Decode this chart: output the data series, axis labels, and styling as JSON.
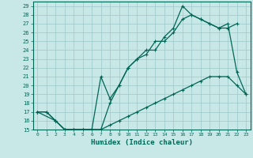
{
  "xlabel": "Humidex (Indice chaleur)",
  "bg_color": "#c8e8e8",
  "grid_color": "#9ec8c8",
  "line_color": "#006655",
  "xlim": [
    -0.5,
    23.5
  ],
  "ylim": [
    15,
    29.5
  ],
  "xticks": [
    0,
    1,
    2,
    3,
    4,
    5,
    6,
    7,
    8,
    9,
    10,
    11,
    12,
    13,
    14,
    15,
    16,
    17,
    18,
    19,
    20,
    21,
    22,
    23
  ],
  "yticks": [
    15,
    16,
    17,
    18,
    19,
    20,
    21,
    22,
    23,
    24,
    25,
    26,
    27,
    28,
    29
  ],
  "line1_x": [
    0,
    1,
    2,
    3,
    4,
    5,
    6,
    7,
    8,
    9,
    10,
    11,
    12,
    13,
    14,
    15,
    16,
    17,
    18,
    19,
    20,
    21,
    22,
    23
  ],
  "line1_y": [
    17,
    17,
    16,
    15,
    15,
    15,
    15,
    15,
    15.5,
    16,
    16.5,
    17,
    17.5,
    18,
    18.5,
    19,
    19.5,
    20,
    20.5,
    21,
    21,
    21,
    20,
    19
  ],
  "line2_x": [
    0,
    2,
    3,
    4,
    5,
    6,
    7,
    8,
    9,
    10,
    11,
    12,
    13,
    14,
    15,
    16,
    17,
    18,
    19,
    20,
    21,
    22
  ],
  "line2_y": [
    17,
    16,
    15,
    15,
    15,
    15,
    21,
    18.5,
    20,
    22,
    23,
    24,
    24,
    25.5,
    26.5,
    29,
    28,
    27.5,
    27,
    26.5,
    26.5,
    27
  ],
  "line3_x": [
    0,
    1,
    2,
    3,
    4,
    5,
    6,
    7,
    8,
    9,
    10,
    11,
    12,
    13,
    14,
    15,
    16,
    17,
    18,
    19,
    20,
    21,
    22,
    23
  ],
  "line3_y": [
    17,
    17,
    16,
    15,
    15,
    15,
    15,
    15,
    18,
    20,
    22,
    23,
    23.5,
    25,
    25,
    26,
    27.5,
    28,
    27.5,
    27,
    26.5,
    27,
    21.5,
    19
  ]
}
